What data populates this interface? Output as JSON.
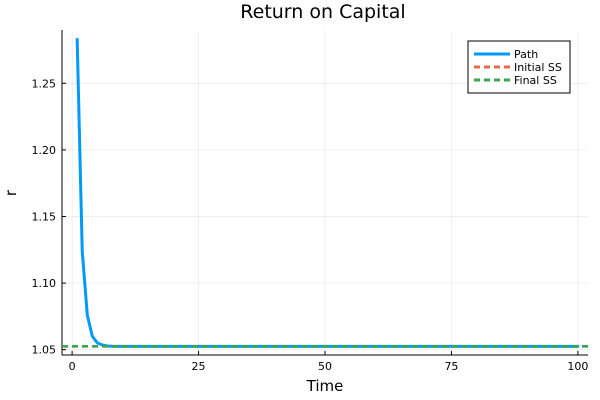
{
  "chart_data": {
    "type": "line",
    "title": "Return on Capital",
    "xlabel": "Time",
    "ylabel": "r",
    "xlim": [
      -2,
      102
    ],
    "ylim": [
      1.046,
      1.29
    ],
    "xticks": [
      0,
      25,
      50,
      75,
      100
    ],
    "xtick_labels": [
      "0",
      "25",
      "50",
      "75",
      "100"
    ],
    "yticks": [
      1.05,
      1.1,
      1.15,
      1.2,
      1.25
    ],
    "ytick_labels": [
      "1.05",
      "1.10",
      "1.15",
      "1.20",
      "1.25"
    ],
    "grid": true,
    "legend_position": "top-right",
    "series": [
      {
        "name": "Path",
        "style": "solid",
        "color": "#009AFA",
        "x": [
          1,
          2,
          3,
          4,
          5,
          6,
          7,
          8,
          9,
          10,
          15,
          20,
          30,
          40,
          50,
          60,
          70,
          80,
          90,
          100
        ],
        "y": [
          1.283,
          1.124,
          1.076,
          1.06,
          1.055,
          1.0535,
          1.0528,
          1.0526,
          1.0525,
          1.0525,
          1.0525,
          1.0525,
          1.0525,
          1.0525,
          1.0525,
          1.0525,
          1.0525,
          1.0525,
          1.0525,
          1.0525
        ]
      },
      {
        "name": "Initial SS",
        "style": "dashed",
        "color": "#E26F46",
        "hline": 1.0525
      },
      {
        "name": "Final SS",
        "style": "dashed",
        "color": "#3DA44D",
        "hline": 1.0525
      }
    ]
  }
}
